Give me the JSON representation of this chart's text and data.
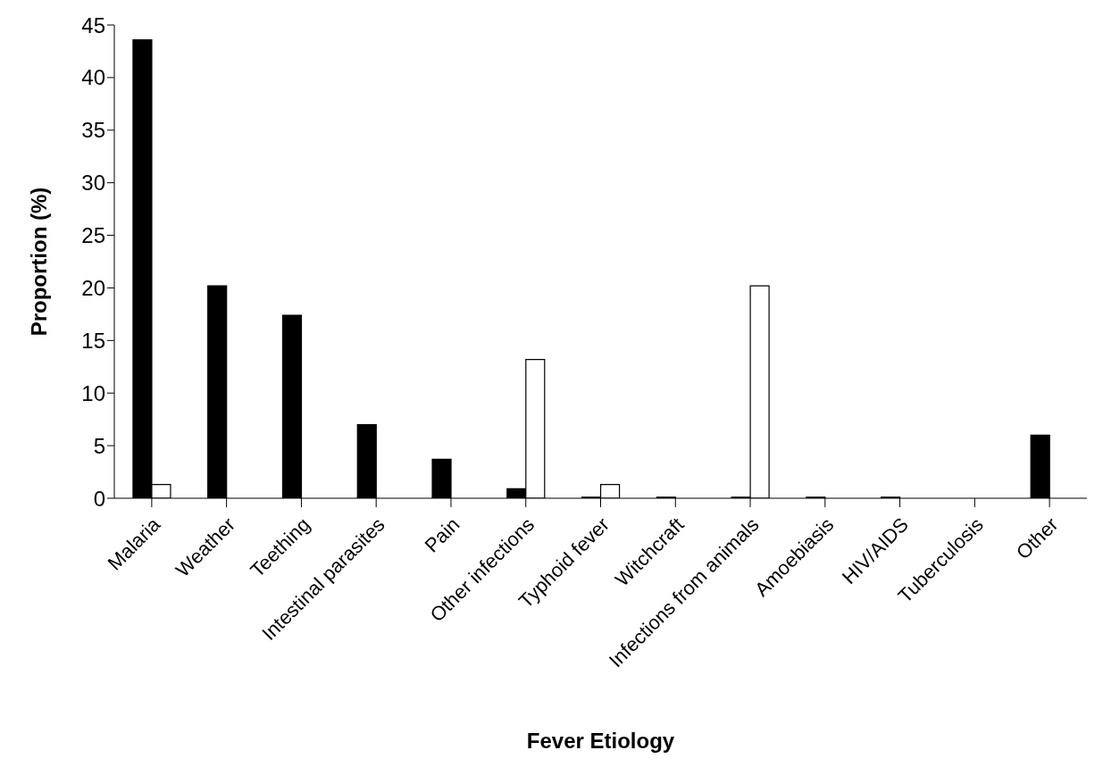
{
  "chart_data": {
    "type": "bar",
    "xlabel": "Fever Etiology",
    "ylabel": "Proportion (%)",
    "categories": [
      "Malaria",
      "Weather",
      "Teething",
      "Intestinal parasites",
      "Pain",
      "Other infections",
      "Typhoid fever",
      "Witchcraft",
      "Infections from animals",
      "Amoebiasis",
      "HIV/AIDS",
      "Tuberculosis",
      "Other"
    ],
    "series": [
      {
        "color": "#000000",
        "values": [
          43.6,
          20.2,
          17.4,
          7.0,
          3.7,
          0.9,
          0.1,
          0.1,
          0.1,
          0.1,
          0.1,
          0,
          6.0
        ]
      },
      {
        "color": "#ffffff",
        "values": [
          1.3,
          0,
          0,
          0,
          0,
          13.2,
          1.3,
          0,
          20.2,
          0,
          0,
          0,
          0
        ]
      }
    ],
    "ylim": [
      0,
      45
    ],
    "yticks": [
      0,
      5,
      10,
      15,
      20,
      25,
      30,
      35,
      40,
      45
    ],
    "grid": false,
    "legend": false
  }
}
